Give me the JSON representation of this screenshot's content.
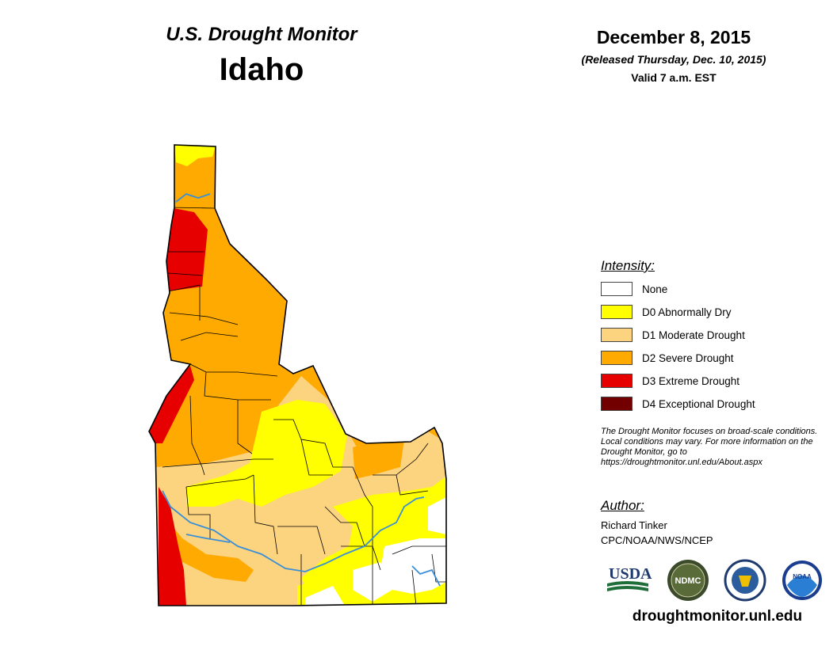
{
  "header": {
    "product": "U.S. Drought Monitor",
    "state": "Idaho"
  },
  "date": {
    "main": "December 8, 2015",
    "released": "(Released Thursday, Dec. 10, 2015)",
    "valid": "Valid 7 a.m. EST"
  },
  "legend": {
    "title": "Intensity:",
    "items": [
      {
        "label": "None",
        "color": "#ffffff"
      },
      {
        "label": "D0 Abnormally Dry",
        "color": "#ffff00"
      },
      {
        "label": "D1 Moderate Drought",
        "color": "#fcd37f"
      },
      {
        "label": "D2 Severe Drought",
        "color": "#ffaa00"
      },
      {
        "label": "D3 Extreme Drought",
        "color": "#e60000"
      },
      {
        "label": "D4 Exceptional Drought",
        "color": "#730000"
      }
    ]
  },
  "disclaimer": "The Drought Monitor focuses on broad-scale conditions. Local conditions may vary. For more information on the Drought Monitor, go to https://droughtmonitor.unl.edu/About.aspx",
  "author": {
    "title": "Author:",
    "name": "Richard Tinker",
    "org": "CPC/NOAA/NWS/NCEP"
  },
  "logos": {
    "usda": "USDA",
    "ndmc": "NDMC",
    "doc": "commerce-seal",
    "noaa": "NOAA"
  },
  "website": "droughtmonitor.unl.edu",
  "map": {
    "river_color": "#3a8fd8",
    "border_color": "#000000"
  }
}
